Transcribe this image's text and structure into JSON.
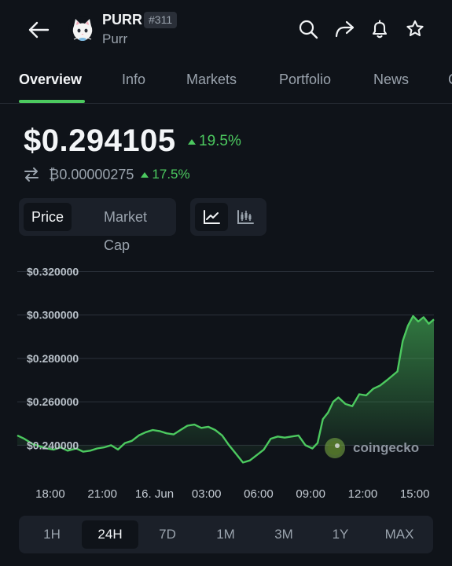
{
  "header": {
    "symbol": "PURR",
    "rank": "#311",
    "name": "Purr"
  },
  "tabs": [
    {
      "label": "Overview",
      "active": true
    },
    {
      "label": "Info",
      "active": false
    },
    {
      "label": "Markets",
      "active": false
    },
    {
      "label": "Portfolio",
      "active": false
    },
    {
      "label": "News",
      "active": false
    },
    {
      "label": "C",
      "active": false
    }
  ],
  "price": {
    "usd": "$0.294105",
    "usd_change": "19.5%",
    "btc": "₿0.00000275",
    "btc_change": "17.5%"
  },
  "toggle": {
    "price_label": "Price",
    "mcap_label": "Market Cap",
    "active": "Price",
    "chart_mode": "line"
  },
  "watermark": "coingecko",
  "range": {
    "options": [
      "1H",
      "24H",
      "7D",
      "1M",
      "3M",
      "1Y",
      "MAX"
    ],
    "active": "24H"
  },
  "colors": {
    "accent": "#4cc95f",
    "background": "#0f1319",
    "panel": "#1b2029"
  },
  "chart_data": {
    "type": "area",
    "title": "",
    "xlabel": "",
    "ylabel": "",
    "ylim": [
      0.226,
      0.322
    ],
    "yticks": [
      0.24,
      0.26,
      0.28,
      0.3,
      0.32
    ],
    "ytick_labels": [
      "$0.240000",
      "$0.260000",
      "$0.280000",
      "$0.300000",
      "$0.320000"
    ],
    "xtick_labels": [
      "18:00",
      "21:00",
      "16. Jun",
      "03:00",
      "06:00",
      "09:00",
      "12:00",
      "15:00"
    ],
    "xtick_hours": [
      0,
      3,
      6,
      9,
      12,
      15,
      18,
      21
    ],
    "xlim_hours": [
      -1.9,
      22.1
    ],
    "grid": true,
    "series": [
      {
        "x": [
          -1.9,
          -1.5,
          -1.0,
          -0.6,
          -0.2,
          0.2,
          0.6,
          1.0,
          1.5,
          1.9,
          2.3,
          2.7,
          3.1,
          3.5,
          3.9,
          4.3,
          4.7,
          5.1,
          5.5,
          5.9,
          6.3,
          6.7,
          7.1,
          7.5,
          7.9,
          8.3,
          8.7,
          9.1,
          9.5,
          9.9,
          10.3,
          10.7,
          11.1,
          11.5,
          11.9,
          12.3,
          12.7,
          13.1,
          13.5,
          13.9,
          14.3,
          14.7,
          15.1,
          15.4,
          15.7,
          16.0,
          16.3,
          16.6,
          17.0,
          17.4,
          17.8,
          18.2,
          18.6,
          19.0,
          19.4,
          19.7,
          20.0,
          20.3,
          20.6,
          20.9,
          21.2,
          21.5,
          21.8,
          22.1
        ],
        "values": [
          0.2445,
          0.243,
          0.2405,
          0.2395,
          0.2385,
          0.238,
          0.239,
          0.2375,
          0.2385,
          0.237,
          0.2375,
          0.2385,
          0.239,
          0.24,
          0.238,
          0.241,
          0.242,
          0.2445,
          0.246,
          0.247,
          0.2465,
          0.2455,
          0.245,
          0.247,
          0.249,
          0.2495,
          0.248,
          0.2485,
          0.247,
          0.2445,
          0.24,
          0.236,
          0.232,
          0.233,
          0.2355,
          0.238,
          0.243,
          0.244,
          0.2435,
          0.244,
          0.2445,
          0.24,
          0.2385,
          0.241,
          0.252,
          0.255,
          0.26,
          0.262,
          0.259,
          0.258,
          0.2635,
          0.263,
          0.266,
          0.2675,
          0.27,
          0.272,
          0.274,
          0.288,
          0.295,
          0.2995,
          0.297,
          0.299,
          0.296,
          0.298
        ]
      }
    ]
  }
}
